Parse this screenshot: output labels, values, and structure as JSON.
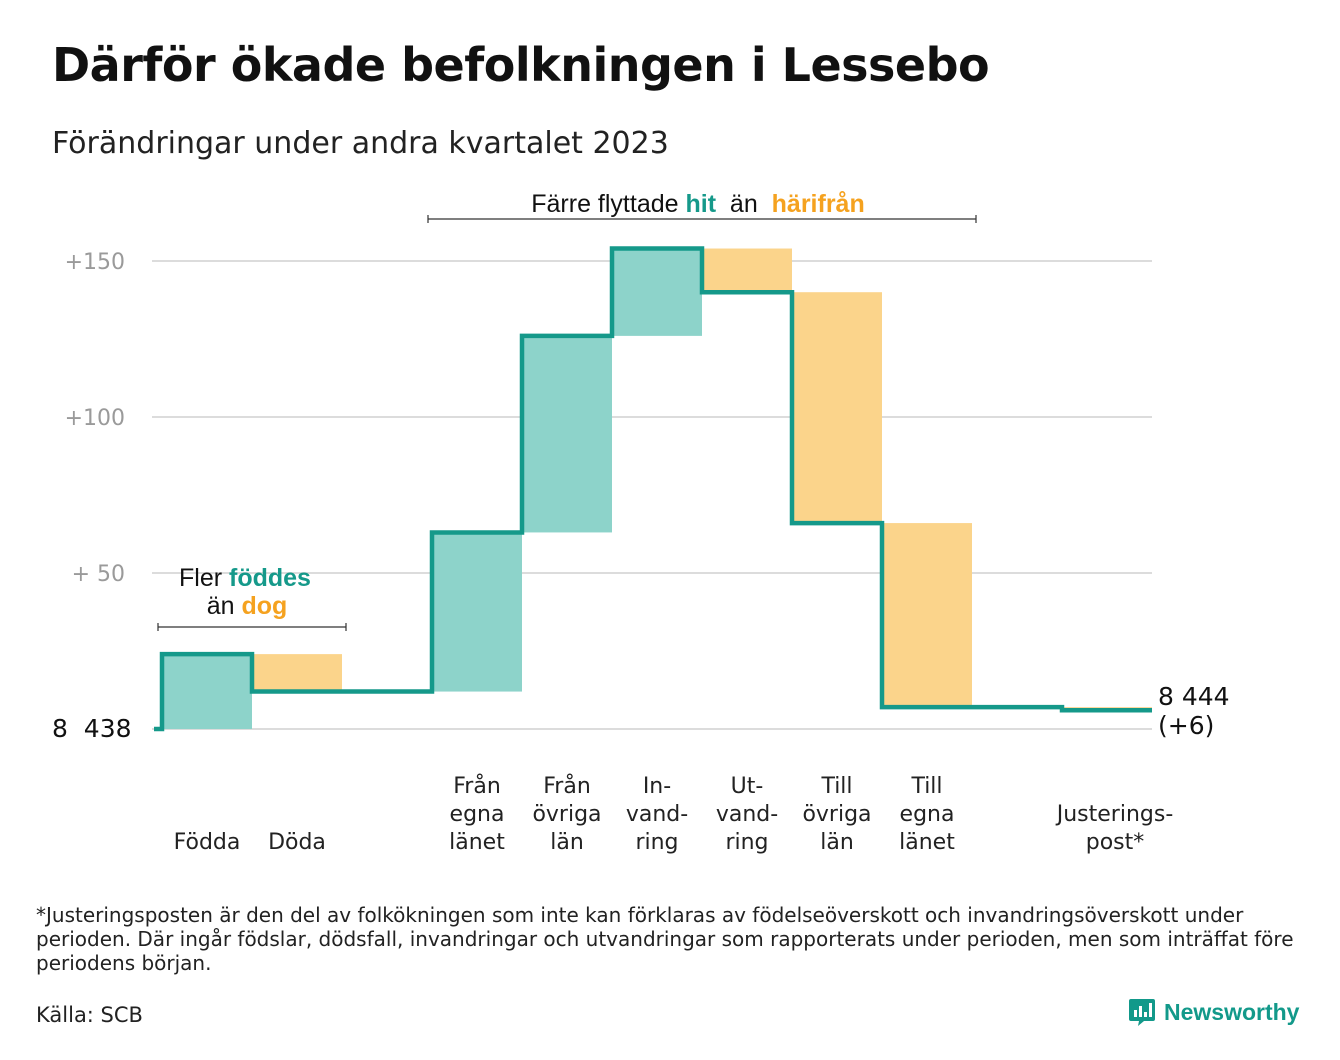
{
  "header": {
    "title": "Därför ökade befolkningen i Lessebo",
    "subtitle": "Förändringar under andra kvartalet 2023"
  },
  "colors": {
    "positive": "#8dd3ca",
    "negative": "#fbd48b",
    "line": "#15998a",
    "grid": "#dcdcdc",
    "accent_teal": "#15998a",
    "accent_orange": "#f5a21f"
  },
  "chart_data": {
    "type": "waterfall",
    "start_value": 8438,
    "start_label": "8  438",
    "end_label": "8 444",
    "end_change_label": "(+6)",
    "ylim": [
      8438,
      8591
    ],
    "y_ticks": [
      {
        "value": 8588,
        "label": "+150"
      },
      {
        "value": 8538,
        "label": "+100"
      },
      {
        "value": 8488,
        "label": "+  50"
      }
    ],
    "grid": true,
    "steps": [
      {
        "label_lines": [
          "Födda"
        ],
        "change": 24
      },
      {
        "label_lines": [
          "Döda"
        ],
        "change": -12
      },
      {
        "label_lines": [],
        "change": 0
      },
      {
        "label_lines": [
          "Från",
          "egna",
          "länet"
        ],
        "change": 51
      },
      {
        "label_lines": [
          "Från",
          "övriga",
          "län"
        ],
        "change": 63
      },
      {
        "label_lines": [
          "In-",
          "vand-",
          "ring"
        ],
        "change": 28
      },
      {
        "label_lines": [
          "Ut-",
          "vand-",
          "ring"
        ],
        "change": -14
      },
      {
        "label_lines": [
          "Till",
          "övriga",
          "län"
        ],
        "change": -74
      },
      {
        "label_lines": [
          "Till",
          "egna",
          "länet"
        ],
        "change": -59
      },
      {
        "label_lines": [],
        "change": 0
      },
      {
        "label_lines": [
          "Justerings-",
          "post*"
        ],
        "change": -1
      }
    ],
    "annotations": {
      "births": {
        "line1": [
          "Fler ",
          "föddes"
        ],
        "line2": [
          "än ",
          "dog"
        ]
      },
      "migration": {
        "parts": [
          "Färre flyttade ",
          "hit",
          " än ",
          "härifrån"
        ]
      }
    }
  },
  "footnote": "*Justeringsposten är den del av folkökningen som inte kan förklaras av födelseöverskott och invandringsöverskott under perioden. Där ingår födslar, dödsfall, invandringar och utvandringar som rapporterats under perioden, men som inträffat före periodens början.",
  "source": "Källa: SCB",
  "brand": {
    "name": "Newsworthy",
    "icon": "bar-chart-logo-icon"
  }
}
